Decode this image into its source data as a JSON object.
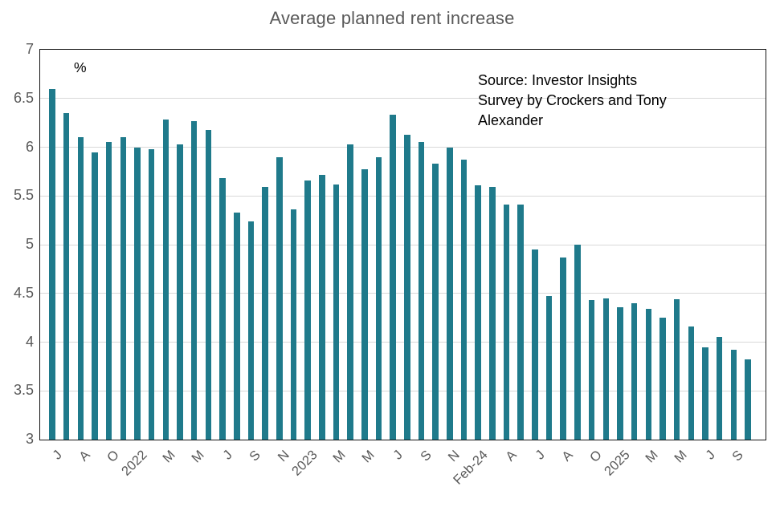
{
  "title": "Average planned rent increase",
  "percent_label": "%",
  "source_note": "Source: Investor Insights\nSurvey by Crockers and Tony\nAlexander",
  "colors": {
    "bar": "#1F7A8B",
    "title": "#595959",
    "tick_label": "#595959",
    "gridline": "#D9D9D9",
    "plot_border": "#141414",
    "annotation": "#000000"
  },
  "chart_data": {
    "type": "bar",
    "title": "Average planned rent increase",
    "ylabel": "%",
    "ylim": [
      3,
      7
    ],
    "yticks": [
      7,
      6.5,
      6,
      5.5,
      5,
      4.5,
      4,
      3.5,
      3
    ],
    "grid": true,
    "legend": false,
    "xtick_rotation": 45,
    "annotation": "Source: Investor Insights Survey by Crockers and Tony Alexander",
    "categories": [
      "J",
      "",
      "A",
      "",
      "O",
      "",
      "2022",
      "",
      "M",
      "",
      "M",
      "",
      "J",
      "",
      "S",
      "",
      "N",
      "",
      "2023",
      "",
      "M",
      "",
      "M",
      "",
      "J",
      "",
      "S",
      "",
      "N",
      "",
      "Feb-24",
      "",
      "A",
      "",
      "J",
      "",
      "A",
      "",
      "O",
      "",
      "2025",
      "",
      "M",
      "",
      "M",
      "",
      "J",
      "",
      "S",
      ""
    ],
    "values": [
      6.6,
      6.35,
      6.1,
      5.95,
      6.05,
      6.1,
      6.0,
      5.98,
      6.28,
      6.03,
      6.27,
      6.18,
      5.68,
      5.33,
      5.24,
      5.59,
      5.9,
      5.36,
      5.66,
      5.72,
      5.62,
      6.03,
      5.77,
      5.9,
      6.33,
      6.13,
      6.05,
      5.83,
      6.0,
      5.87,
      5.61,
      5.59,
      5.41,
      5.41,
      4.95,
      4.47,
      4.87,
      5.0,
      4.43,
      4.45,
      4.36,
      4.4,
      4.34,
      4.25,
      4.44,
      4.16,
      3.95,
      4.05,
      3.92,
      3.82
    ]
  }
}
